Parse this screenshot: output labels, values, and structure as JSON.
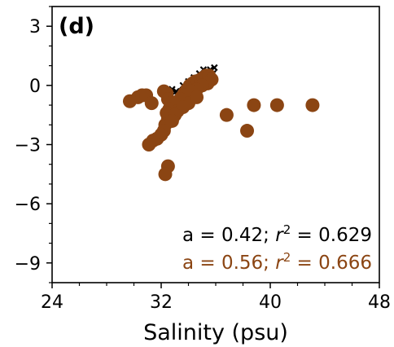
{
  "chart_data": {
    "type": "scatter",
    "panel_label": "(d)",
    "xlabel": "Salinity (psu)",
    "ylabel": "",
    "xlim": [
      24,
      48
    ],
    "ylim": [
      -10,
      4
    ],
    "x_ticks": [
      24,
      32,
      40,
      48
    ],
    "x_tick_labels": [
      "24",
      "32",
      "40",
      "48"
    ],
    "y_ticks": [
      3,
      0,
      -3,
      -6,
      -9
    ],
    "y_tick_labels": [
      "3",
      "0",
      "−3",
      "−6",
      "−9"
    ],
    "x_minor_step": 2,
    "y_minor_step": 1,
    "grid": false,
    "annotations": [
      {
        "prefix": "a = 0.42; ",
        "r": "r",
        "sup": "2",
        "suffix": " = 0.629",
        "color": "#000000"
      },
      {
        "prefix": "a = 0.56; ",
        "r": "r",
        "sup": "2",
        "suffix": " = 0.666",
        "color": "#8B4513"
      }
    ],
    "series": [
      {
        "color": "#000000",
        "marker": "x",
        "points": [
          [
            34.6,
            0.3
          ],
          [
            35.0,
            0.5
          ],
          [
            35.3,
            0.7
          ],
          [
            35.6,
            0.8
          ],
          [
            35.9,
            0.9
          ],
          [
            34.2,
            0.1
          ],
          [
            33.8,
            -0.1
          ],
          [
            33.5,
            -0.3
          ],
          [
            33.2,
            -0.5
          ],
          [
            32.9,
            -0.8
          ],
          [
            34.0,
            0.2
          ],
          [
            34.4,
            0.4
          ],
          [
            34.8,
            0.6
          ],
          [
            35.2,
            0.3
          ],
          [
            35.5,
            0.5
          ],
          [
            33.6,
            0.0
          ],
          [
            33.1,
            -0.3
          ],
          [
            32.6,
            -0.6
          ],
          [
            34.9,
            0.1
          ],
          [
            35.8,
            0.6
          ],
          [
            33.9,
            -0.4
          ],
          [
            34.3,
            -0.2
          ],
          [
            32.8,
            -0.2
          ],
          [
            35.1,
            0.8
          ],
          [
            34.6,
            -0.1
          ]
        ]
      },
      {
        "color": "#8B4513",
        "marker": "circle",
        "points": [
          [
            29.7,
            -0.8
          ],
          [
            30.3,
            -0.6
          ],
          [
            30.6,
            -0.5
          ],
          [
            30.9,
            -0.5
          ],
          [
            31.3,
            -0.9
          ],
          [
            32.2,
            -0.3
          ],
          [
            32.4,
            -0.4
          ],
          [
            32.5,
            -0.7
          ],
          [
            32.7,
            -0.9
          ],
          [
            32.9,
            -1.0
          ],
          [
            33.1,
            -1.0
          ],
          [
            33.3,
            -0.8
          ],
          [
            33.5,
            -0.6
          ],
          [
            33.7,
            -0.4
          ],
          [
            33.9,
            -0.2
          ],
          [
            34.1,
            0.0
          ],
          [
            34.3,
            0.1
          ],
          [
            34.5,
            0.2
          ],
          [
            34.7,
            0.2
          ],
          [
            34.9,
            0.3
          ],
          [
            35.1,
            0.4
          ],
          [
            35.3,
            0.5
          ],
          [
            35.5,
            0.5
          ],
          [
            35.7,
            0.3
          ],
          [
            35.4,
            0.1
          ],
          [
            35.0,
            0.0
          ],
          [
            34.6,
            -0.2
          ],
          [
            34.2,
            -0.3
          ],
          [
            33.8,
            -0.5
          ],
          [
            33.4,
            -0.7
          ],
          [
            33.0,
            -0.9
          ],
          [
            32.6,
            -1.2
          ],
          [
            32.4,
            -1.4
          ],
          [
            32.5,
            -1.7
          ],
          [
            32.3,
            -2.0
          ],
          [
            32.2,
            -2.3
          ],
          [
            32.0,
            -2.5
          ],
          [
            31.7,
            -2.7
          ],
          [
            31.4,
            -2.8
          ],
          [
            31.1,
            -3.0
          ],
          [
            32.5,
            -4.1
          ],
          [
            32.3,
            -4.5
          ],
          [
            33.2,
            -1.3
          ],
          [
            34.0,
            -0.9
          ],
          [
            34.6,
            -0.6
          ],
          [
            33.6,
            -1.1
          ],
          [
            33.0,
            -1.5
          ],
          [
            32.8,
            -1.8
          ],
          [
            36.8,
            -1.5
          ],
          [
            38.3,
            -2.3
          ],
          [
            38.8,
            -1.0
          ],
          [
            40.5,
            -1.0
          ],
          [
            43.1,
            -1.0
          ]
        ]
      }
    ]
  }
}
